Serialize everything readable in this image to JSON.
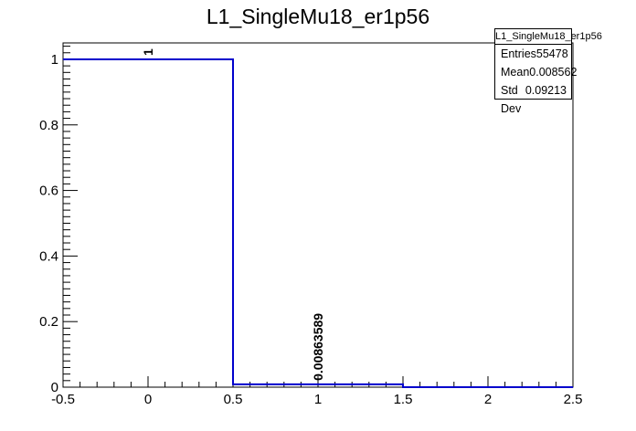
{
  "chart_data": {
    "type": "histogram",
    "title": "L1_SingleMu18_er1p56",
    "xlim": [
      -0.5,
      2.5
    ],
    "ylim": [
      0,
      1.05
    ],
    "bins": [
      {
        "low": -0.5,
        "high": 0.5,
        "value": 1,
        "label": "1"
      },
      {
        "low": 0.5,
        "high": 1.5,
        "value": 0.00863589,
        "label": "0.00863589"
      },
      {
        "low": 1.5,
        "high": 2.5,
        "value": 0,
        "label": ""
      }
    ],
    "x_ticks": [
      "-0.5",
      "0",
      "0.5",
      "1",
      "1.5",
      "2",
      "2.5"
    ],
    "y_ticks": [
      "0",
      "0.2",
      "0.4",
      "0.6",
      "0.8",
      "1"
    ],
    "line_color": "#0000cc",
    "stats": {
      "title": "L1_SingleMu18_er1p56",
      "entries_label": "Entries",
      "entries": "55478",
      "mean_label": "Mean",
      "mean": "0.008562",
      "std_label": "Std Dev",
      "std": "0.09213"
    }
  }
}
